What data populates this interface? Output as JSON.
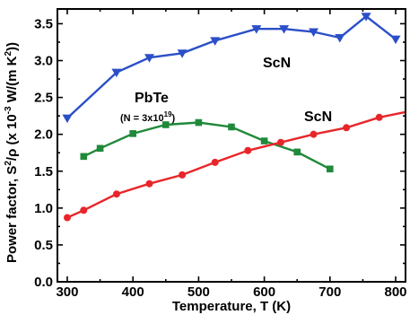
{
  "chart_data": {
    "type": "line",
    "xlabel": "Temperature, T (K)",
    "ylabel": {
      "prefix": "Power factor, S",
      "sup1": "2",
      "mid": "/ρ (x 10",
      "sup2": "-3",
      "mid2": " W/(m K",
      "sup3": "2",
      "suffix": "))"
    },
    "xlim": [
      285,
      815
    ],
    "ylim": [
      0.0,
      3.7
    ],
    "x_ticks": [
      300,
      400,
      500,
      600,
      700,
      800
    ],
    "y_ticks": [
      0.0,
      0.5,
      1.0,
      1.5,
      2.0,
      2.5,
      3.0,
      3.5
    ],
    "x_tick_labels": [
      "300",
      "400",
      "500",
      "600",
      "700",
      "800"
    ],
    "y_tick_labels": [
      "0.0",
      "0.5",
      "1.0",
      "1.5",
      "2.0",
      "2.5",
      "3.0",
      "3.5"
    ],
    "grid": false,
    "series": [
      {
        "name": "ScN",
        "color": "#2b4fc8",
        "marker": "triangle-down",
        "x": [
          300,
          375,
          425,
          475,
          525,
          588,
          630,
          675,
          715,
          755,
          800
        ],
        "y": [
          2.22,
          2.84,
          3.04,
          3.1,
          3.27,
          3.43,
          3.43,
          3.39,
          3.31,
          3.6,
          3.29
        ]
      },
      {
        "name": "PbTe",
        "color": "#1f8a3a",
        "marker": "square",
        "x": [
          325,
          350,
          400,
          450,
          500,
          550,
          600,
          650,
          700
        ],
        "y": [
          1.7,
          1.81,
          2.01,
          2.13,
          2.16,
          2.1,
          1.91,
          1.76,
          1.53
        ]
      },
      {
        "name": "ScN",
        "color": "#e8262a",
        "marker": "circle",
        "x": [
          300,
          325,
          375,
          425,
          475,
          525,
          575,
          625,
          675,
          725,
          775,
          825
        ],
        "y": [
          0.87,
          0.97,
          1.19,
          1.33,
          1.45,
          1.62,
          1.78,
          1.89,
          2.0,
          2.09,
          2.23,
          2.32
        ]
      }
    ],
    "annotations": {
      "scn_blue": "ScN",
      "pbte": "PbTe",
      "pbte_note_prefix": "(N = 3x10",
      "pbte_note_sup": "19",
      "pbte_note_suffix": ")",
      "scn_red": "ScN"
    }
  }
}
